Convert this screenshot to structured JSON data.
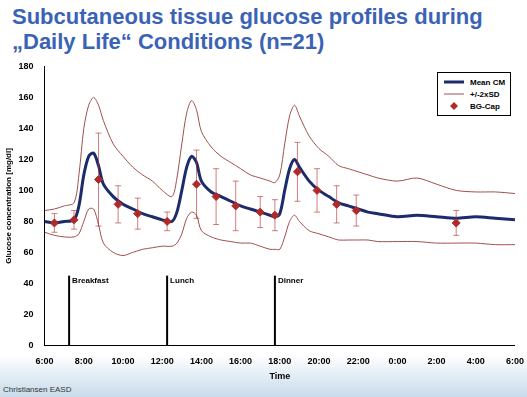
{
  "chart_data": {
    "type": "line",
    "title": "Subcutaneous tissue glucose profiles during „Daily Life“ Conditions (n=21)",
    "x_label": "Time",
    "y_label": "Glucose concentration [mg/dl]",
    "source": "Christiansen EASD",
    "xlim": [
      6,
      30
    ],
    "xticks": [
      {
        "value": 6,
        "label": "6:00"
      },
      {
        "value": 8,
        "label": "8:00"
      },
      {
        "value": 10,
        "label": "10:00"
      },
      {
        "value": 12,
        "label": "12:00"
      },
      {
        "value": 14,
        "label": "14:00"
      },
      {
        "value": 16,
        "label": "16:00"
      },
      {
        "value": 18,
        "label": "18:00"
      },
      {
        "value": 20,
        "label": "20:00"
      },
      {
        "value": 22,
        "label": "22:00"
      },
      {
        "value": 24,
        "label": "0:00"
      },
      {
        "value": 26,
        "label": "2:00"
      },
      {
        "value": 28,
        "label": "4:00"
      },
      {
        "value": 30,
        "label": "6:00"
      }
    ],
    "ylim": [
      0,
      180
    ],
    "yticks": [
      0,
      20,
      40,
      60,
      80,
      100,
      120,
      140,
      160,
      180
    ],
    "grid": false,
    "legend": "upper right",
    "x": [
      6,
      6.5,
      7,
      7.5,
      7.75,
      8,
      8.25,
      8.5,
      8.75,
      9,
      9.5,
      10,
      10.5,
      11,
      11.5,
      12,
      12.5,
      12.75,
      13,
      13.25,
      13.5,
      13.75,
      14,
      14.5,
      15,
      15.5,
      16,
      16.5,
      17,
      17.5,
      17.75,
      18,
      18.25,
      18.5,
      18.75,
      19,
      19.5,
      20,
      20.5,
      21,
      21.5,
      22,
      22.5,
      23,
      24,
      25,
      26,
      27,
      28,
      29,
      30
    ],
    "series": [
      {
        "name": "Mean CM",
        "type": "line",
        "color": "#1c2b6b",
        "line_style": "solid",
        "values": [
          80,
          79,
          80,
          81,
          90,
          110,
          122,
          124,
          116,
          104,
          96,
          91,
          88,
          85,
          83,
          81,
          80,
          86,
          100,
          115,
          122,
          118,
          106,
          99,
          96,
          93,
          90,
          88,
          86,
          84,
          83,
          85,
          100,
          114,
          120,
          115,
          106,
          100,
          96,
          92,
          90,
          88,
          86,
          85,
          83,
          84,
          83,
          82,
          83,
          82,
          81
        ]
      },
      {
        "name": "+/-2xSD",
        "type": "line",
        "color": "#a0504c",
        "line_style": "solid",
        "upper": [
          87,
          88,
          90,
          92,
          110,
          140,
          155,
          160,
          155,
          145,
          130,
          122,
          115,
          110,
          106,
          100,
          96,
          108,
          130,
          150,
          158,
          152,
          138,
          128,
          122,
          118,
          114,
          110,
          108,
          106,
          105,
          110,
          130,
          148,
          155,
          148,
          135,
          127,
          122,
          116,
          114,
          112,
          110,
          108,
          106,
          108,
          104,
          100,
          99,
          99,
          98
        ],
        "lower": [
          73,
          71,
          70,
          70,
          72,
          80,
          88,
          88,
          78,
          66,
          60,
          58,
          60,
          62,
          63,
          64,
          64,
          66,
          72,
          82,
          86,
          84,
          74,
          70,
          68,
          67,
          66,
          66,
          64,
          62,
          62,
          62,
          70,
          80,
          84,
          80,
          74,
          72,
          70,
          68,
          68,
          68,
          68,
          67,
          67,
          67,
          66,
          66,
          66,
          65,
          65
        ]
      },
      {
        "name": "BG-Cap",
        "type": "scatter",
        "color": "#b02a2a",
        "marker": "diamond",
        "x": [
          6.5,
          7.5,
          8.75,
          9.75,
          10.75,
          12.25,
          13.75,
          14.75,
          15.75,
          17,
          17.75,
          18.9,
          19.9,
          20.9,
          21.9,
          27
        ],
        "values": [
          79,
          81,
          107,
          91,
          85,
          80,
          104,
          96,
          90,
          86,
          84,
          112,
          100,
          91,
          87,
          79
        ],
        "error": [
          6,
          6,
          30,
          12,
          10,
          6,
          22,
          18,
          16,
          10,
          10,
          19,
          14,
          12,
          10,
          8
        ]
      }
    ],
    "annotations": [
      {
        "text": "Breakfast",
        "x": 7.25,
        "y": 45
      },
      {
        "text": "Lunch",
        "x": 12.25,
        "y": 45
      },
      {
        "text": "Dinner",
        "x": 17.75,
        "y": 45
      }
    ]
  }
}
